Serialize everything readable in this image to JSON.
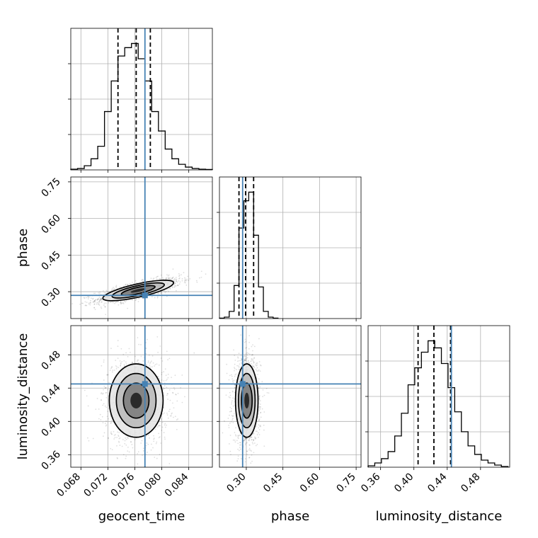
{
  "chart_data": {
    "type": "corner",
    "parameters": [
      "geocent_time",
      "phase",
      "luminosity_distance"
    ],
    "truth": {
      "geocent_time": 0.0775,
      "phase": 0.285,
      "luminosity_distance": 0.445
    },
    "truth_color": "#4682b4",
    "axes": {
      "geocent_time": {
        "range": [
          0.0665,
          0.0875
        ],
        "ticks": [
          0.068,
          0.072,
          0.076,
          0.08,
          0.084
        ],
        "tick_labels": [
          "0.068",
          "0.072",
          "0.076",
          "0.080",
          "0.084"
        ],
        "label": "geocent_time"
      },
      "phase": {
        "range": [
          0.19,
          0.77
        ],
        "ticks": [
          0.3,
          0.45,
          0.6,
          0.75
        ],
        "tick_labels": [
          "0.30",
          "0.45",
          "0.60",
          "0.75"
        ],
        "label": "phase"
      },
      "luminosity_distance": {
        "range": [
          0.345,
          0.515
        ],
        "ticks": [
          0.36,
          0.4,
          0.44,
          0.48
        ],
        "tick_labels": [
          "0.36",
          "0.40",
          "0.44",
          "0.48"
        ],
        "label": "luminosity_distance"
      }
    },
    "grid": true,
    "marginals": {
      "geocent_time": {
        "bin_edges": [
          0.0665,
          0.0675,
          0.0685,
          0.0695,
          0.0705,
          0.0715,
          0.0725,
          0.0735,
          0.0745,
          0.0755,
          0.0765,
          0.0775,
          0.0785,
          0.0795,
          0.0805,
          0.0815,
          0.0825,
          0.0835,
          0.0845,
          0.0855,
          0.0865,
          0.0875
        ],
        "counts": [
          0.5,
          1.0,
          3.0,
          8.0,
          17.0,
          42.0,
          64.0,
          82.0,
          88.0,
          91.0,
          80.0,
          64.0,
          42.0,
          28.0,
          15.0,
          8.0,
          4.0,
          2.0,
          1.0,
          0.5,
          0.3
        ],
        "quantiles": [
          0.0735,
          0.0762,
          0.0783
        ]
      },
      "phase": {
        "bin_edges": [
          0.19,
          0.21,
          0.23,
          0.25,
          0.27,
          0.29,
          0.31,
          0.33,
          0.35,
          0.37,
          0.39,
          0.41,
          0.43
        ],
        "counts": [
          0.3,
          1.0,
          5.0,
          23.0,
          63.0,
          82.0,
          88.0,
          58.0,
          22.0,
          5.0,
          1.0,
          0.3
        ],
        "quantiles": [
          0.27,
          0.297,
          0.33
        ]
      },
      "luminosity_distance": {
        "bin_edges": [
          0.345,
          0.353,
          0.361,
          0.369,
          0.377,
          0.385,
          0.393,
          0.401,
          0.409,
          0.417,
          0.425,
          0.433,
          0.441,
          0.449,
          0.457,
          0.465,
          0.473,
          0.481,
          0.489,
          0.497,
          0.505,
          0.513
        ],
        "counts": [
          1.0,
          3.0,
          6.0,
          11.0,
          22.0,
          38.0,
          58.0,
          70.0,
          81.0,
          89.0,
          84.0,
          73.0,
          56.0,
          39.0,
          25.0,
          15.0,
          9.0,
          5.0,
          3.0,
          1.5,
          0.5
        ],
        "quantiles": [
          0.405,
          0.424,
          0.444
        ]
      }
    },
    "joint": [
      {
        "x": "geocent_time",
        "y": "phase",
        "mean": [
          0.0765,
          0.305
        ],
        "sd": [
          0.0025,
          0.02
        ],
        "corr": 0.75
      },
      {
        "x": "geocent_time",
        "y": "luminosity_distance",
        "mean": [
          0.0762,
          0.425
        ],
        "sd": [
          0.0019,
          0.021
        ],
        "corr": 0.0
      },
      {
        "x": "phase",
        "y": "luminosity_distance",
        "mean": [
          0.302,
          0.425
        ],
        "sd": [
          0.022,
          0.021
        ],
        "corr": 0.0
      }
    ]
  }
}
